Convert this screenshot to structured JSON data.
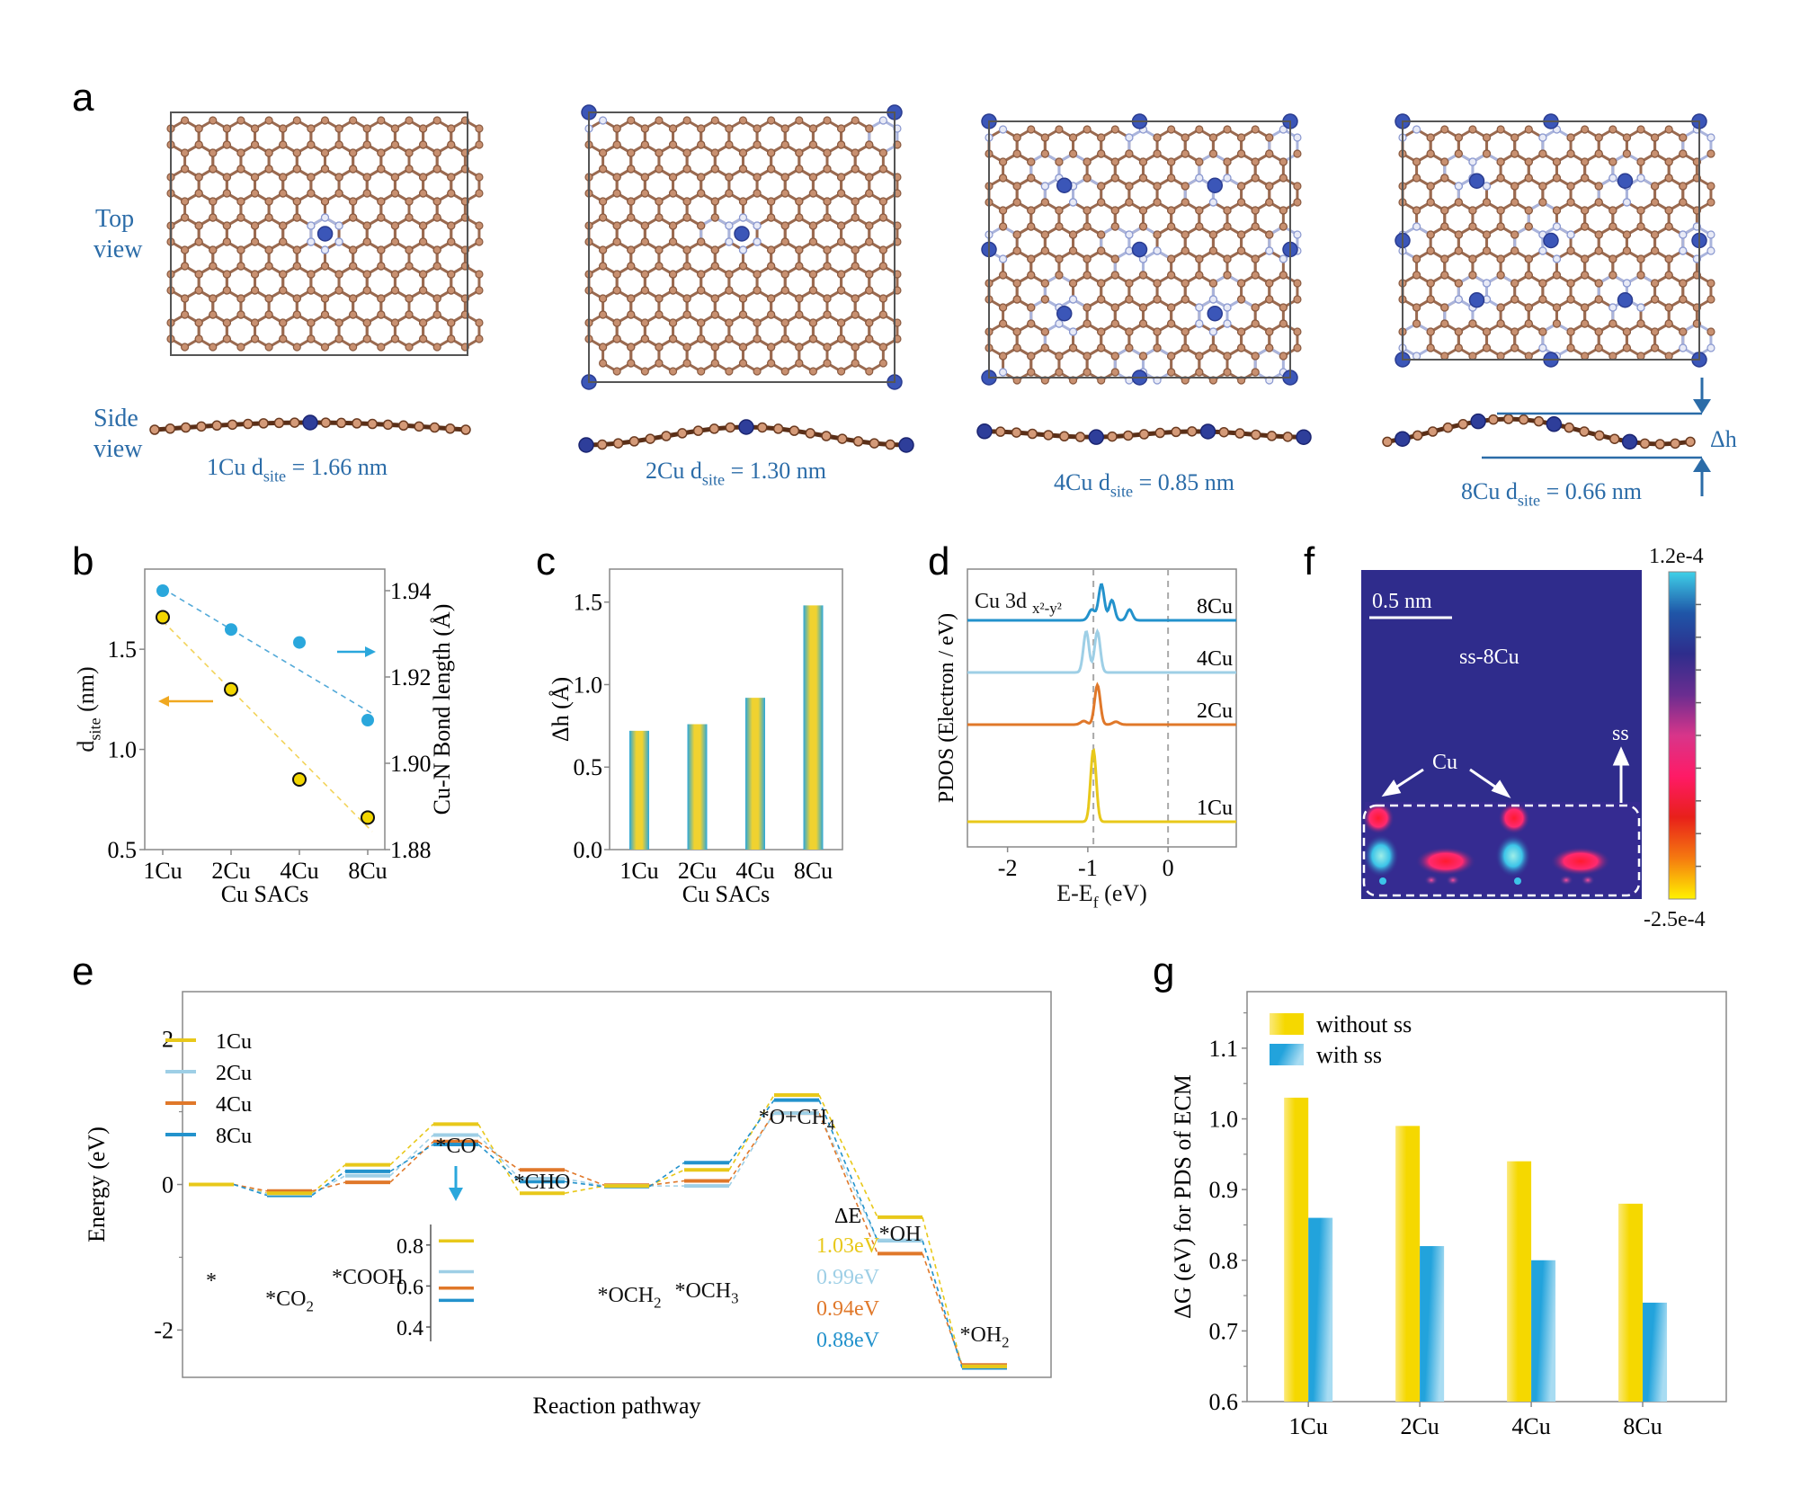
{
  "panels": {
    "a": {
      "letter": "a",
      "top_view_label": [
        "Top",
        "view"
      ],
      "side_view_label": [
        "Side",
        "view"
      ],
      "structures": [
        {
          "name": "1Cu",
          "dsite_prefix": "1Cu d",
          "dsite_sub": "site",
          "dsite_value": " = 1.66 nm",
          "cu_sites": 1
        },
        {
          "name": "2Cu",
          "dsite_prefix": "2Cu d",
          "dsite_sub": "site",
          "dsite_value": " = 1.30 nm",
          "cu_sites": 2
        },
        {
          "name": "4Cu",
          "dsite_prefix": "4Cu d",
          "dsite_sub": "site",
          "dsite_value": " = 0.85 nm",
          "cu_sites": 4
        },
        {
          "name": "8Cu",
          "dsite_prefix": "8Cu d",
          "dsite_sub": "site",
          "dsite_value": " = 0.66 nm",
          "cu_sites": 8
        }
      ],
      "delta_h_label": "Δh"
    },
    "b": {
      "letter": "b"
    },
    "c": {
      "letter": "c"
    },
    "d": {
      "letter": "d"
    },
    "e": {
      "letter": "e"
    },
    "f": {
      "letter": "f",
      "scale_bar": "0.5 nm",
      "title": "ss-8Cu",
      "cu_label": "Cu",
      "ss_label": "ss",
      "colorbar_max": "1.2e-4",
      "colorbar_min": "-2.5e-4",
      "colorbar_colors": [
        "#3fd0e8",
        "#1f56a8",
        "#2e2d8c",
        "#6a2d90",
        "#d8358a",
        "#ff1a66",
        "#e8201a",
        "#f57a10",
        "#fff200"
      ]
    },
    "g": {
      "letter": "g"
    }
  },
  "chart_data": [
    {
      "id": "b",
      "type": "scatter",
      "categories": [
        "1Cu",
        "2Cu",
        "4Cu",
        "8Cu"
      ],
      "xlabel": "Cu SACs",
      "ylabel": "d_site (nm)",
      "ylabel_main": "d",
      "ylabel_sub": "site",
      "ylabel_suffix": " (nm)",
      "y2label": "Cu-N Bond length (Å)",
      "ylim": [
        0.5,
        1.9
      ],
      "yticks": [
        "0.5",
        "1.0",
        "1.5"
      ],
      "yticks_values": [
        0.5,
        1.0,
        1.5
      ],
      "y2lim": [
        1.88,
        1.945
      ],
      "y2ticks": [
        "1.88",
        "1.90",
        "1.92",
        "1.94"
      ],
      "y2ticks_values": [
        1.88,
        1.9,
        1.92,
        1.94
      ],
      "series": [
        {
          "name": "d_site",
          "axis": "left",
          "values": [
            1.66,
            1.3,
            0.85,
            0.66
          ],
          "color": "#f2d600",
          "edge": "#111111"
        },
        {
          "name": "Cu-N bond length",
          "axis": "right",
          "values": [
            1.94,
            1.931,
            1.928,
            1.91
          ],
          "color": "#2aa7dc"
        }
      ],
      "trendlines": [
        {
          "series": "d_site",
          "from": 1.64,
          "to": 0.59,
          "color": "#f2d35a"
        },
        {
          "series": "Cu-N bond length",
          "from": 1.9405,
          "to": 1.9115,
          "color": "#52a9d8"
        }
      ]
    },
    {
      "id": "c",
      "type": "bar",
      "categories": [
        "1Cu",
        "2Cu",
        "4Cu",
        "8Cu"
      ],
      "values": [
        0.72,
        0.76,
        0.92,
        1.48
      ],
      "xlabel": "Cu SACs",
      "ylabel": "Δh (Å)",
      "ylim": [
        0.0,
        1.7
      ],
      "yticks": [
        "0.0",
        "0.5",
        "1.0",
        "1.5"
      ],
      "yticks_values": [
        0,
        0.5,
        1.0,
        1.5
      ],
      "colors": {
        "edge": "#2aa7dc",
        "center": "#f0d230"
      }
    },
    {
      "id": "d",
      "type": "line",
      "title": "Cu 3d",
      "title_sub": "x²-y²",
      "xlabel": "E-E_f (eV)",
      "xlabel_main": "E-E",
      "xlabel_sub": "f",
      "xlabel_suffix": " (eV)",
      "ylabel": "PDOS (Electron / eV)",
      "xlim": [
        -2.5,
        0.85
      ],
      "xticks": [
        "-2",
        "-1",
        "0"
      ],
      "xticks_values": [
        -2,
        -1,
        0
      ],
      "vlines": [
        -0.93,
        0
      ],
      "series": [
        {
          "name": "1Cu",
          "color": "#e8c81a",
          "offset": 0,
          "peaks": [
            [
              -0.93,
              1.0,
              0.035
            ]
          ]
        },
        {
          "name": "2Cu",
          "color": "#e0782a",
          "offset": 1,
          "peaks": [
            [
              -0.88,
              0.55,
              0.035
            ],
            [
              -1.05,
              0.05,
              0.04
            ],
            [
              -0.65,
              0.04,
              0.04
            ]
          ]
        },
        {
          "name": "4Cu",
          "color": "#9ecfe6",
          "offset": 2,
          "peaks": [
            [
              -1.02,
              0.57,
              0.035
            ],
            [
              -0.88,
              0.57,
              0.035
            ]
          ]
        },
        {
          "name": "8Cu",
          "color": "#2392cc",
          "offset": 3,
          "peaks": [
            [
              -0.95,
              0.15,
              0.04
            ],
            [
              -0.83,
              0.5,
              0.035
            ],
            [
              -0.7,
              0.28,
              0.035
            ],
            [
              -0.48,
              0.15,
              0.035
            ]
          ]
        }
      ]
    },
    {
      "id": "e",
      "type": "line",
      "subtype": "energy-profile",
      "xlabel": "Reaction pathway",
      "ylabel": "Energy (eV)",
      "ylim": [
        -2.65,
        2.65
      ],
      "yticks": [
        "-2",
        "0",
        "2"
      ],
      "yticks_values": [
        -2,
        0,
        2
      ],
      "steps": [
        "*",
        "*CO2",
        "*COOH",
        "*CO",
        "*CHO",
        "*OCH2",
        "*OCH3",
        "*O+CH4",
        "*OH",
        "*OH2"
      ],
      "step_labels": [
        {
          "main": "*",
          "sub": ""
        },
        {
          "main": "*CO",
          "sub": "2"
        },
        {
          "main": "*COOH",
          "sub": ""
        },
        {
          "main": "*CO",
          "sub": ""
        },
        {
          "main": "*CHO",
          "sub": ""
        },
        {
          "main": "*OCH",
          "sub": "2"
        },
        {
          "main": "*OCH",
          "sub": "3"
        },
        {
          "main": "*O+CH",
          "sub": "4"
        },
        {
          "main": "*OH",
          "sub": ""
        },
        {
          "main": "*OH",
          "sub": "2"
        }
      ],
      "series": [
        {
          "name": "1Cu",
          "color": "#e8c81a",
          "values": [
            0,
            -0.12,
            0.27,
            0.83,
            -0.12,
            -0.02,
            0.2,
            1.23,
            -0.45,
            -2.5
          ]
        },
        {
          "name": "2Cu",
          "color": "#9ecfe6",
          "values": [
            0,
            -0.13,
            0.12,
            0.68,
            0.08,
            -0.02,
            -0.02,
            0.98,
            -0.77,
            -2.5
          ]
        },
        {
          "name": "4Cu",
          "color": "#e0782a",
          "values": [
            0,
            -0.09,
            0.03,
            0.59,
            0.2,
            -0.01,
            0.05,
            0.98,
            -0.95,
            -2.48
          ]
        },
        {
          "name": "8Cu",
          "color": "#2392cc",
          "values": [
            0,
            -0.15,
            0.18,
            0.55,
            0.04,
            -0.03,
            0.3,
            1.16,
            -0.77,
            -2.52
          ]
        }
      ],
      "delta_e": {
        "title": "ΔE",
        "values": [
          "1.03eV",
          "0.99eV",
          "0.94eV",
          "0.88eV"
        ]
      },
      "inset": {
        "ylim": [
          0.33,
          0.9
        ],
        "yticks": [
          "0.4",
          "0.6",
          "0.8"
        ],
        "yticks_values": [
          0.4,
          0.6,
          0.8
        ],
        "values": [
          0.82,
          0.67,
          0.59,
          0.53
        ]
      }
    },
    {
      "id": "g",
      "type": "bar",
      "categories": [
        "1Cu",
        "2Cu",
        "4Cu",
        "8Cu"
      ],
      "ylabel": "ΔG (eV) for PDS of ECM",
      "xlabel": "",
      "ylim": [
        0.6,
        1.18
      ],
      "yticks": [
        "0.6",
        "0.7",
        "0.8",
        "0.9",
        "1.0",
        "1.1"
      ],
      "yticks_values": [
        0.6,
        0.7,
        0.8,
        0.9,
        1.0,
        1.1
      ],
      "legend_position": "top-left",
      "series": [
        {
          "name": "without ss",
          "values": [
            1.03,
            0.99,
            0.94,
            0.88
          ],
          "color": "#f5d800",
          "color_light": "#fbe97a"
        },
        {
          "name": "with ss",
          "values": [
            0.86,
            0.82,
            0.8,
            0.74
          ],
          "color": "#22a3dc",
          "color_light": "#a8dcf2"
        }
      ]
    }
  ]
}
